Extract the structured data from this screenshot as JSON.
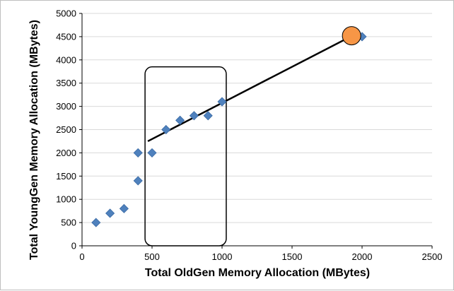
{
  "chart_data": {
    "type": "scatter",
    "xlabel": "Total OldGen Memory Allocation (MBytes)",
    "ylabel": "Total YoungGen Memory Allocation (MBytes)",
    "xlim": [
      0,
      2500
    ],
    "ylim": [
      0,
      5000
    ],
    "xticks": [
      0,
      500,
      1000,
      1500,
      2000,
      2500
    ],
    "yticks": [
      0,
      500,
      1000,
      1500,
      2000,
      2500,
      3000,
      3500,
      4000,
      4500,
      5000
    ],
    "grid": "horizontal",
    "legend": "none",
    "series": [
      {
        "marker": "diamond",
        "color": "#4f81bd",
        "points": [
          {
            "x": 100,
            "y": 500
          },
          {
            "x": 200,
            "y": 700
          },
          {
            "x": 300,
            "y": 800
          },
          {
            "x": 400,
            "y": 1400
          },
          {
            "x": 400,
            "y": 2000
          },
          {
            "x": 500,
            "y": 2000
          },
          {
            "x": 600,
            "y": 2500
          },
          {
            "x": 700,
            "y": 2700
          },
          {
            "x": 800,
            "y": 2800
          },
          {
            "x": 900,
            "y": 2800
          },
          {
            "x": 1000,
            "y": 3100
          },
          {
            "x": 2000,
            "y": 4500
          }
        ]
      }
    ],
    "annotations": {
      "trend_line": {
        "from": {
          "x": 470,
          "y": 2250
        },
        "to": {
          "x": 1930,
          "y": 4520
        },
        "color": "#000000"
      },
      "highlight_box": {
        "x0": 450,
        "x1": 1030,
        "y0": 0,
        "y1": 3850,
        "color": "#000000"
      },
      "highlight_point": {
        "x": 1925,
        "y": 4520,
        "color": "#f79646"
      }
    }
  }
}
